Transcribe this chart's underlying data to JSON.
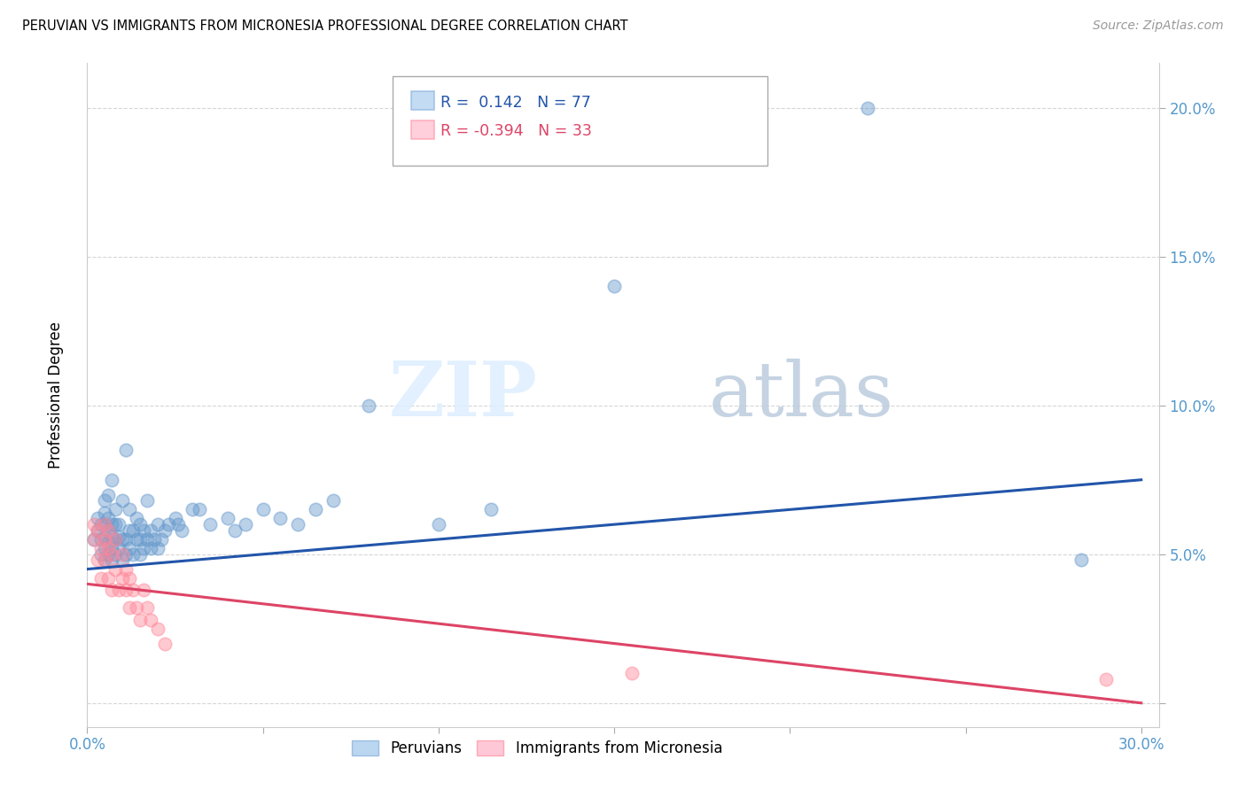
{
  "title": "PERUVIAN VS IMMIGRANTS FROM MICRONESIA PROFESSIONAL DEGREE CORRELATION CHART",
  "source": "Source: ZipAtlas.com",
  "ylabel": "Professional Degree",
  "xlim": [
    0.0,
    0.305
  ],
  "ylim": [
    -0.008,
    0.215
  ],
  "yticks": [
    0.0,
    0.05,
    0.1,
    0.15,
    0.2
  ],
  "ytick_labels": [
    "",
    "5.0%",
    "10.0%",
    "15.0%",
    "20.0%"
  ],
  "xticks": [
    0.0,
    0.05,
    0.1,
    0.15,
    0.2,
    0.25,
    0.3
  ],
  "xtick_labels": [
    "0.0%",
    "",
    "",
    "",
    "",
    "",
    "30.0%"
  ],
  "legend_blue_label": "Peruvians",
  "legend_pink_label": "Immigrants from Micronesia",
  "R_blue": 0.142,
  "N_blue": 77,
  "R_pink": -0.394,
  "N_pink": 33,
  "blue_color": "#6699CC",
  "pink_color": "#FF8899",
  "line_blue": "#2255AA",
  "line_pink": "#DD4466",
  "watermark_zip": "ZIP",
  "watermark_atlas": "atlas",
  "blue_line_start_y": 0.045,
  "blue_line_end_y": 0.075,
  "pink_line_start_y": 0.04,
  "pink_line_end_y": 0.0,
  "blue_points_x": [
    0.002,
    0.003,
    0.003,
    0.004,
    0.004,
    0.004,
    0.005,
    0.005,
    0.005,
    0.005,
    0.005,
    0.005,
    0.006,
    0.006,
    0.006,
    0.006,
    0.006,
    0.007,
    0.007,
    0.007,
    0.007,
    0.007,
    0.008,
    0.008,
    0.008,
    0.008,
    0.009,
    0.009,
    0.009,
    0.01,
    0.01,
    0.01,
    0.011,
    0.011,
    0.011,
    0.012,
    0.012,
    0.012,
    0.013,
    0.013,
    0.014,
    0.014,
    0.015,
    0.015,
    0.015,
    0.016,
    0.016,
    0.017,
    0.017,
    0.018,
    0.018,
    0.019,
    0.02,
    0.02,
    0.021,
    0.022,
    0.023,
    0.025,
    0.026,
    0.027,
    0.03,
    0.032,
    0.035,
    0.04,
    0.042,
    0.045,
    0.05,
    0.055,
    0.06,
    0.065,
    0.07,
    0.08,
    0.1,
    0.115,
    0.15,
    0.222,
    0.283
  ],
  "blue_points_y": [
    0.055,
    0.058,
    0.062,
    0.05,
    0.055,
    0.06,
    0.048,
    0.052,
    0.056,
    0.06,
    0.064,
    0.068,
    0.05,
    0.054,
    0.058,
    0.062,
    0.07,
    0.048,
    0.052,
    0.056,
    0.06,
    0.075,
    0.05,
    0.055,
    0.06,
    0.065,
    0.052,
    0.056,
    0.06,
    0.048,
    0.055,
    0.068,
    0.05,
    0.055,
    0.085,
    0.052,
    0.058,
    0.065,
    0.05,
    0.058,
    0.055,
    0.062,
    0.05,
    0.055,
    0.06,
    0.052,
    0.058,
    0.055,
    0.068,
    0.052,
    0.058,
    0.055,
    0.052,
    0.06,
    0.055,
    0.058,
    0.06,
    0.062,
    0.06,
    0.058,
    0.065,
    0.065,
    0.06,
    0.062,
    0.058,
    0.06,
    0.065,
    0.062,
    0.06,
    0.065,
    0.068,
    0.1,
    0.06,
    0.065,
    0.14,
    0.2,
    0.048
  ],
  "pink_points_x": [
    0.002,
    0.002,
    0.003,
    0.003,
    0.004,
    0.004,
    0.005,
    0.005,
    0.005,
    0.006,
    0.006,
    0.006,
    0.007,
    0.007,
    0.008,
    0.008,
    0.009,
    0.01,
    0.01,
    0.011,
    0.011,
    0.012,
    0.012,
    0.013,
    0.014,
    0.015,
    0.016,
    0.017,
    0.018,
    0.02,
    0.022,
    0.155,
    0.29
  ],
  "pink_points_y": [
    0.055,
    0.06,
    0.048,
    0.058,
    0.042,
    0.052,
    0.055,
    0.06,
    0.048,
    0.042,
    0.052,
    0.058,
    0.038,
    0.05,
    0.045,
    0.055,
    0.038,
    0.042,
    0.05,
    0.038,
    0.045,
    0.032,
    0.042,
    0.038,
    0.032,
    0.028,
    0.038,
    0.032,
    0.028,
    0.025,
    0.02,
    0.01,
    0.008
  ]
}
